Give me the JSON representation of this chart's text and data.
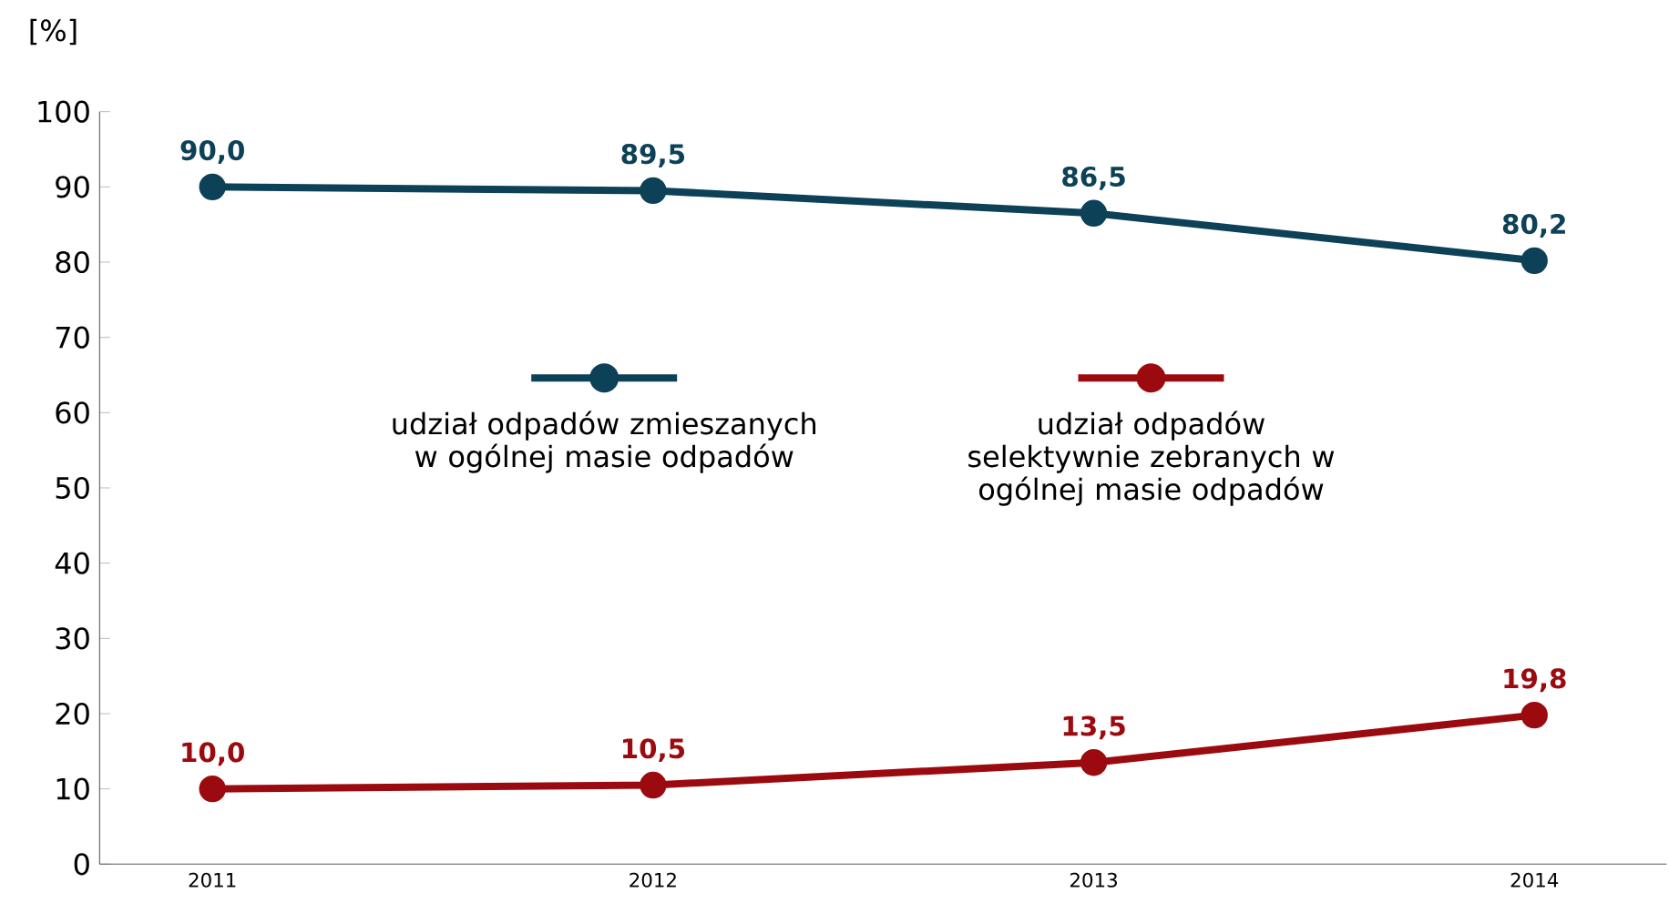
{
  "chart_data": {
    "type": "line",
    "ylabel": "[%]",
    "categories": [
      "2011",
      "2012",
      "2013",
      "2014"
    ],
    "series": [
      {
        "name": "udział odpadów zmieszanych w ogólnej masie odpadów",
        "color": "#0d4157",
        "values": [
          90.0,
          89.5,
          86.5,
          80.2
        ],
        "value_labels": [
          "90,0",
          "89,5",
          "86,5",
          "80,2"
        ]
      },
      {
        "name": "udział odpadów selektywnie zebranych w ogólnej masie odpadów",
        "color": "#9b0a0e",
        "values": [
          10.0,
          10.5,
          13.5,
          19.8
        ],
        "value_labels": [
          "10,0",
          "10,5",
          "13,5",
          "19,8"
        ]
      }
    ],
    "ylim": [
      0,
      100
    ],
    "yticks": [
      0,
      10,
      20,
      30,
      40,
      50,
      60,
      70,
      80,
      90,
      100
    ],
    "grid": false,
    "legend": "top",
    "marker": "circle",
    "line_style": "solid"
  }
}
